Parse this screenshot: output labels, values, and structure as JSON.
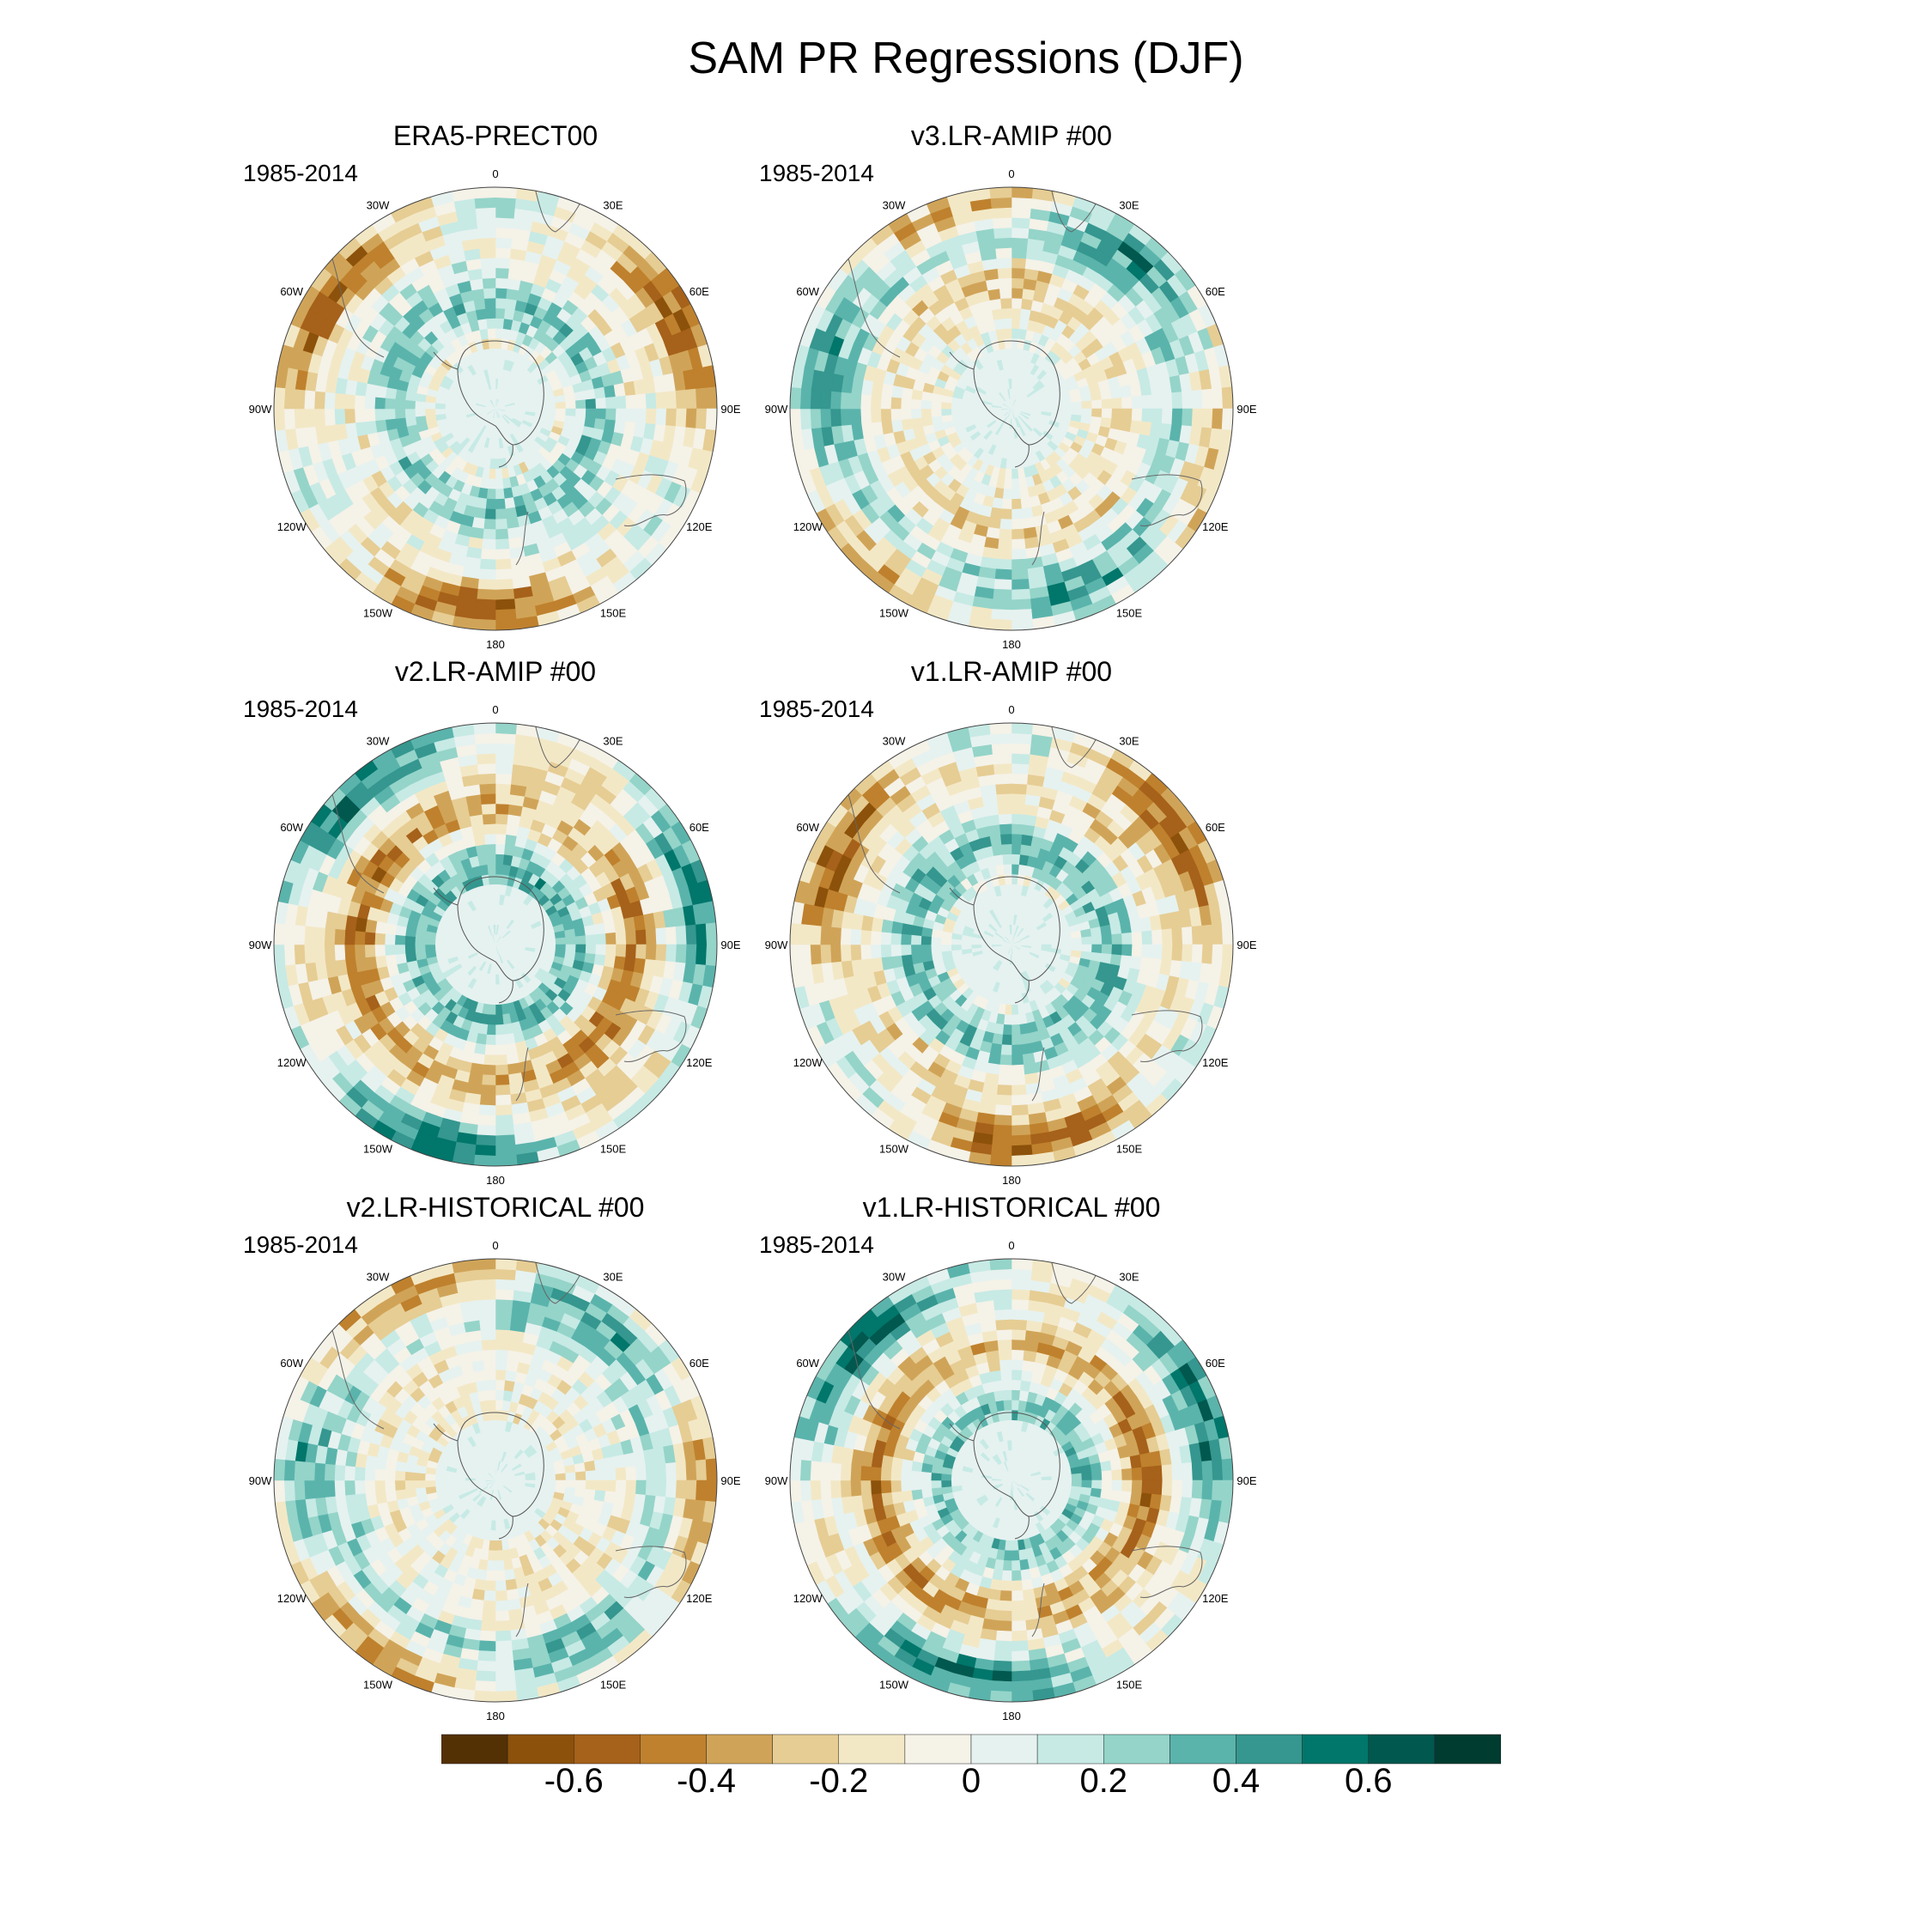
{
  "title": "SAM PR Regressions (DJF)",
  "panels": [
    {
      "id": "era5",
      "title": "ERA5-PRECT00",
      "period": "1985-2014",
      "seed": 3
    },
    {
      "id": "v3amip",
      "title": "v3.LR-AMIP  #00",
      "period": "1985-2014",
      "seed": 11
    },
    {
      "id": "v2amip",
      "title": "v2.LR-AMIP  #00",
      "period": "1985-2014",
      "seed": 19
    },
    {
      "id": "v1amip",
      "title": "v1.LR-AMIP  #00",
      "period": "1985-2014",
      "seed": 27
    },
    {
      "id": "v2hist",
      "title": "v2.LR-HISTORICAL  #00",
      "period": "1985-2014",
      "seed": 35
    },
    {
      "id": "v1hist",
      "title": "v1.LR-HISTORICAL  #00",
      "period": "1985-2014",
      "seed": 43
    }
  ],
  "longitude_labels": [
    "0",
    "30E",
    "60E",
    "90E",
    "120E",
    "150E",
    "180",
    "150W",
    "120W",
    "90W",
    "60W",
    "30W"
  ],
  "colorbar": {
    "colors": [
      "#543005",
      "#8c510a",
      "#a6611a",
      "#bf812d",
      "#d0a458",
      "#e6cd94",
      "#f3e8c6",
      "#f5f2e8",
      "#e6f2f0",
      "#c7eae5",
      "#95d4c9",
      "#5ab4ac",
      "#35978f",
      "#01766b",
      "#01584e",
      "#003c30"
    ],
    "tick_labels": [
      "-0.6",
      "-0.4",
      "-0.2",
      "0",
      "0.2",
      "0.4",
      "0.6"
    ],
    "tick_values": [
      -0.6,
      -0.4,
      -0.2,
      0,
      0.2,
      0.4,
      0.6
    ],
    "range": [
      -0.8,
      0.8
    ]
  }
}
